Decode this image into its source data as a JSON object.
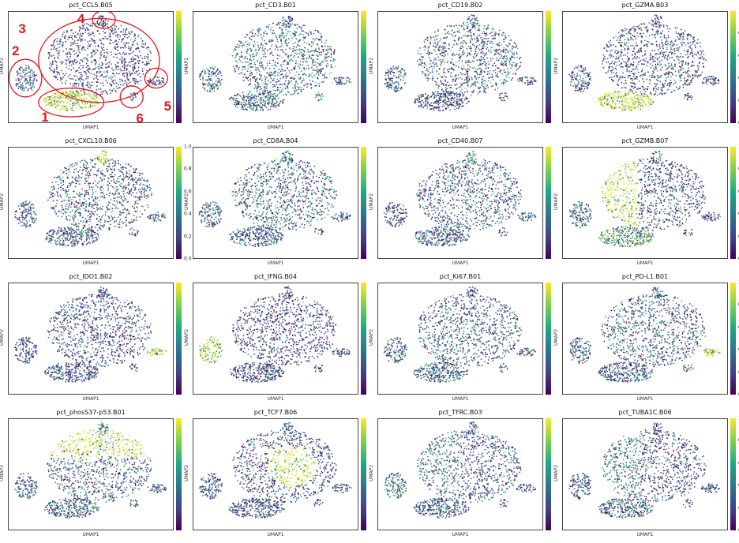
{
  "chart_data": [
    {
      "type": "scatter",
      "title": "pct_CCL5.B05",
      "xlabel": "UMAP1",
      "ylabel": "UMAP2",
      "show_ticks": false,
      "cluster_levels": {
        "1": 0.85,
        "2": 0.3,
        "3": 0.1,
        "4": 0.15,
        "5": 0.15,
        "6": 0.15
      },
      "annotations": [
        {
          "label": "1",
          "color": "#e8141b"
        },
        {
          "label": "2",
          "color": "#e8141b"
        },
        {
          "label": "3",
          "color": "#e8141b"
        },
        {
          "label": "4",
          "color": "#e8141b"
        },
        {
          "label": "5",
          "color": "#e8141b"
        },
        {
          "label": "6",
          "color": "#e8141b"
        }
      ]
    },
    {
      "type": "scatter",
      "title": "pct_CD3.B01",
      "xlabel": "UMAP1",
      "ylabel": "UMAP2",
      "show_ticks": false,
      "cluster_levels": {
        "1": 0.45,
        "2": 0.45,
        "3": 0.4,
        "4": 0.3,
        "5": 0.3,
        "6": 0.6
      }
    },
    {
      "type": "scatter",
      "title": "pct_CD19.B02",
      "xlabel": "UMAP1",
      "ylabel": "UMAP2",
      "show_ticks": false,
      "cluster_levels": {
        "1": 0.3,
        "2": 0.3,
        "3": 0.3,
        "4": 0.5,
        "5": 0.2,
        "6": 0.2
      }
    },
    {
      "type": "scatter",
      "title": "pct_GZMA.B03",
      "xlabel": "UMAP1",
      "ylabel": "UMAP2",
      "show_ticks": true,
      "cluster_levels": {
        "1": 0.85,
        "2": 0.3,
        "3": 0.12,
        "4": 0.1,
        "5": 0.1,
        "6": 0.1
      }
    },
    {
      "type": "scatter",
      "title": "pct_CXCL10.B06",
      "xlabel": "UMAP1",
      "ylabel": "UMAP2",
      "show_ticks": true,
      "cluster_levels": {
        "1": 0.25,
        "2": 0.25,
        "3": 0.25,
        "4": 0.9,
        "5": 0.3,
        "6": 0.2
      }
    },
    {
      "type": "scatter",
      "title": "pct_CD8A.B04",
      "xlabel": "UMAP1",
      "ylabel": "UMAP2",
      "show_ticks": false,
      "cluster_levels": {
        "1": 0.35,
        "2": 0.35,
        "3": 0.35,
        "4": 0.4,
        "5": 0.3,
        "6": 0.3
      }
    },
    {
      "type": "scatter",
      "title": "pct_CD40.B07",
      "xlabel": "UMAP1",
      "ylabel": "UMAP2",
      "show_ticks": false,
      "cluster_levels": {
        "1": 0.3,
        "2": 0.3,
        "3": 0.3,
        "4": 0.7,
        "5": 0.5,
        "6": 0.3
      }
    },
    {
      "type": "scatter",
      "title": "pct_GZMB.B07",
      "xlabel": "UMAP1",
      "ylabel": "UMAP2",
      "show_ticks": true,
      "cluster_levels": {
        "1": 0.65,
        "2": 0.3,
        "3": 0.15,
        "3L": 0.85,
        "4": 0.3,
        "5": 0.1,
        "6": 0.1
      }
    },
    {
      "type": "scatter",
      "title": "pct_IDO1.B02",
      "xlabel": "UMAP1",
      "ylabel": "UMAP2",
      "show_ticks": false,
      "cluster_levels": {
        "1": 0.2,
        "2": 0.2,
        "3": 0.15,
        "4": 0.2,
        "5": 0.75,
        "6": 0.2
      }
    },
    {
      "type": "scatter",
      "title": "pct_IFNG.B04",
      "xlabel": "UMAP1",
      "ylabel": "UMAP2",
      "show_ticks": false,
      "cluster_levels": {
        "1": 0.12,
        "2": 0.9,
        "3": 0.1,
        "4": 0.1,
        "5": 0.1,
        "6": 0.1
      }
    },
    {
      "type": "scatter",
      "title": "pct_Ki67.B01",
      "xlabel": "UMAP1",
      "ylabel": "UMAP2",
      "show_ticks": false,
      "cluster_levels": {
        "1": 0.35,
        "2": 0.3,
        "3": 0.3,
        "4": 0.3,
        "5": 0.3,
        "6": 0.3
      }
    },
    {
      "type": "scatter",
      "title": "pct_PD-L1.B01",
      "xlabel": "UMAP1",
      "ylabel": "UMAP2",
      "show_ticks": true,
      "cluster_levels": {
        "1": 0.3,
        "2": 0.3,
        "3": 0.3,
        "4": 0.3,
        "5": 0.85,
        "6": 0.3
      }
    },
    {
      "type": "scatter",
      "title": "pct_phosS37-p53.B01",
      "xlabel": "UMAP1",
      "ylabel": "UMAP2",
      "show_ticks": false,
      "cluster_levels": {
        "1": 0.3,
        "2": 0.3,
        "3": 0.35,
        "3U": 0.75,
        "4": 0.5,
        "5": 0.3,
        "6": 0.3
      }
    },
    {
      "type": "scatter",
      "title": "pct_TCF7.B06",
      "xlabel": "UMAP1",
      "ylabel": "UMAP2",
      "show_ticks": false,
      "cluster_levels": {
        "1": 0.2,
        "2": 0.2,
        "3": 0.2,
        "3C": 0.85,
        "4": 0.3,
        "5": 0.2,
        "6": 0.2
      }
    },
    {
      "type": "scatter",
      "title": "pct_TFRC.B03",
      "xlabel": "UMAP1",
      "ylabel": "UMAP2",
      "show_ticks": false,
      "cluster_levels": {
        "1": 0.3,
        "2": 0.6,
        "3": 0.2,
        "3L": 0.55,
        "4": 0.3,
        "5": 0.2,
        "6": 0.2
      }
    },
    {
      "type": "scatter",
      "title": "pct_TUBA1C.B06",
      "xlabel": "UMAP1",
      "ylabel": "UMAP2",
      "show_ticks": true,
      "cluster_levels": {
        "1": 0.3,
        "2": 0.35,
        "3": 0.2,
        "3L": 0.6,
        "4": 0.3,
        "5": 0.2,
        "6": 0.2
      }
    }
  ],
  "colorbar": {
    "ticks": [
      "0.0",
      "0.2",
      "0.4",
      "0.6",
      "0.8",
      "1.0"
    ],
    "colormap": "viridis",
    "range": [
      0,
      1
    ]
  }
}
